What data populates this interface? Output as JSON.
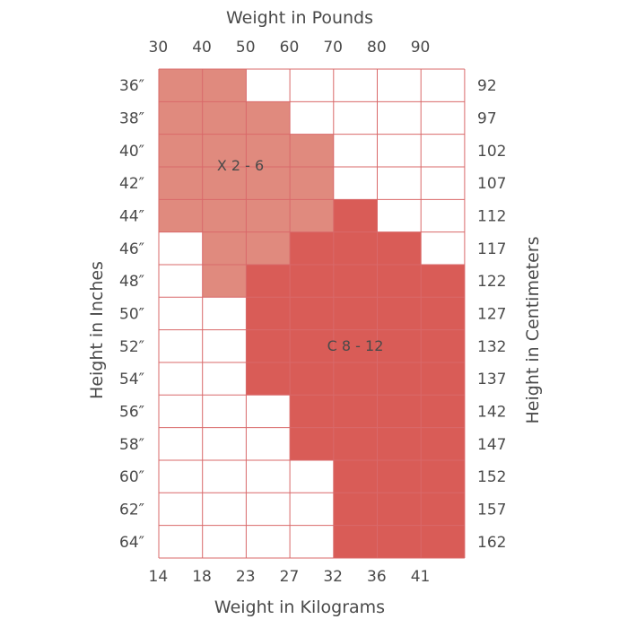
{
  "chart_data": {
    "type": "heatmap",
    "top_axis": {
      "title": "Weight in Pounds",
      "ticks": [
        "30",
        "40",
        "50",
        "60",
        "70",
        "80",
        "90"
      ]
    },
    "bottom_axis": {
      "title": "Weight in Kilograms",
      "ticks": [
        "14",
        "18",
        "23",
        "27",
        "32",
        "36",
        "41"
      ]
    },
    "left_axis": {
      "title": "Height in Inches",
      "ticks": [
        "36″",
        "38″",
        "40″",
        "42″",
        "44″",
        "46″",
        "48″",
        "50″",
        "52″",
        "54″",
        "56″",
        "58″",
        "60″",
        "62″",
        "64″"
      ]
    },
    "right_axis": {
      "title": "Height in Centimeters",
      "ticks": [
        "92",
        "97",
        "102",
        "107",
        "112",
        "117",
        "122",
        "127",
        "132",
        "137",
        "142",
        "147",
        "152",
        "157",
        "162"
      ]
    },
    "regions": [
      {
        "key": "X",
        "label": "X 2 - 6",
        "color": "#e08a7e"
      },
      {
        "key": "C",
        "label": "C 8 - 12",
        "color": "#d95c57"
      }
    ],
    "empty_color": "#ffffff",
    "grid_color": "#d9696a",
    "grid": [
      "XX.....",
      "XXX....",
      "XXXX...",
      "XXXX...",
      "XXXXC..",
      ".XXCCC.",
      ".XCCCCC",
      "..CCCCC",
      "..CCCCC",
      "..CCCCC",
      "...CCCC",
      "...CCCC",
      "....CCC",
      "....CCC",
      "....CCC"
    ]
  }
}
